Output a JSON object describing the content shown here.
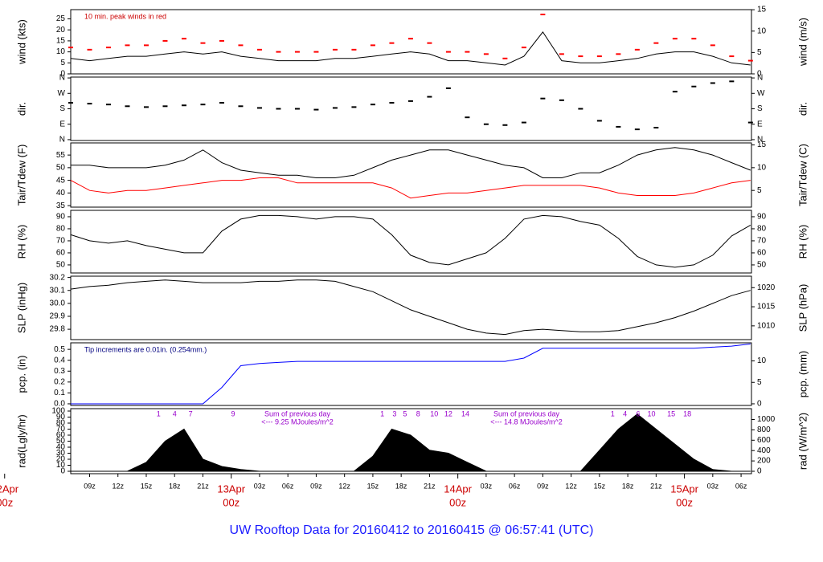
{
  "title": "UW Rooftop Data for 20160412  to  20160415 @ 06:57:41  (UTC)",
  "x_axis": {
    "xlim": [
      7,
      79.1
    ],
    "xticks": [
      {
        "value": 9,
        "label": "09z"
      },
      {
        "value": 12,
        "label": "12z"
      },
      {
        "value": 15,
        "label": "15z"
      },
      {
        "value": 18,
        "label": "18z"
      },
      {
        "value": 21,
        "label": "21z"
      },
      {
        "value": 27,
        "label": "03z"
      },
      {
        "value": 30,
        "label": "06z"
      },
      {
        "value": 33,
        "label": "09z"
      },
      {
        "value": 36,
        "label": "12z"
      },
      {
        "value": 39,
        "label": "15z"
      },
      {
        "value": 42,
        "label": "18z"
      },
      {
        "value": 45,
        "label": "21z"
      },
      {
        "value": 51,
        "label": "03z"
      },
      {
        "value": 54,
        "label": "06z"
      },
      {
        "value": 57,
        "label": "09z"
      },
      {
        "value": 60,
        "label": "12z"
      },
      {
        "value": 63,
        "label": "15z"
      },
      {
        "value": 66,
        "label": "18z"
      },
      {
        "value": 69,
        "label": "21z"
      },
      {
        "value": 75,
        "label": "03z"
      },
      {
        "value": 78,
        "label": "06z"
      }
    ],
    "day_labels": [
      {
        "value": 0,
        "lines": [
          "12Apr",
          "00z"
        ]
      },
      {
        "value": 24,
        "lines": [
          "13Apr",
          "00z"
        ]
      },
      {
        "value": 48,
        "lines": [
          "14Apr",
          "00z"
        ]
      },
      {
        "value": 72,
        "lines": [
          "15Apr",
          "00z"
        ]
      }
    ]
  },
  "chart_data": [
    {
      "type": "line",
      "ylabel": "wind (kts)",
      "y2label": "wind (m/s)",
      "annotation": "10 min. peak winds in red",
      "ylim": [
        0,
        29.2
      ],
      "yticks": [
        0,
        5,
        10,
        15,
        20,
        25
      ],
      "y2lim": [
        0,
        15.02
      ],
      "y2ticks": [
        0,
        5,
        10,
        15
      ],
      "x": [
        7,
        9,
        11,
        13,
        15,
        17,
        19,
        21,
        23,
        25,
        27,
        29,
        31,
        33,
        35,
        37,
        39,
        41,
        43,
        45,
        47,
        49,
        51,
        53,
        55,
        57,
        59,
        61,
        63,
        65,
        67,
        69,
        71,
        73,
        75,
        77,
        79
      ],
      "series": [
        {
          "color": "#000000",
          "values": [
            7,
            6,
            7,
            8,
            8,
            9,
            10,
            9,
            10,
            8,
            7,
            6,
            6,
            6,
            7,
            7,
            8,
            9,
            10,
            9,
            6,
            6,
            5,
            4,
            8,
            19,
            6,
            5,
            5,
            6,
            7,
            9,
            10,
            10,
            8,
            5,
            4
          ]
        },
        {
          "color": "#ff0000",
          "marker": "dash",
          "values": [
            12,
            11,
            12,
            13,
            13,
            15,
            16,
            14,
            15,
            13,
            11,
            10,
            10,
            10,
            11,
            11,
            13,
            14,
            16,
            14,
            10,
            10,
            9,
            7,
            12,
            27,
            9,
            8,
            8,
            9,
            11,
            14,
            16,
            16,
            13,
            8,
            6
          ]
        }
      ]
    },
    {
      "type": "scatter",
      "ylabel": "dir.",
      "y2label": "dir.",
      "ylim": [
        -5,
        365
      ],
      "yticks": [
        {
          "value": 0,
          "label": "N"
        },
        {
          "value": 90,
          "label": "E"
        },
        {
          "value": 180,
          "label": "S"
        },
        {
          "value": 270,
          "label": "W"
        },
        {
          "value": 360,
          "label": "N"
        }
      ],
      "y2lim": [
        -5,
        365
      ],
      "y2ticks": [
        {
          "value": 0,
          "label": "N"
        },
        {
          "value": 90,
          "label": "E"
        },
        {
          "value": 180,
          "label": "S"
        },
        {
          "value": 270,
          "label": "W"
        },
        {
          "value": 360,
          "label": "N"
        }
      ],
      "x": [
        7,
        9,
        11,
        13,
        15,
        17,
        19,
        21,
        23,
        25,
        27,
        29,
        31,
        33,
        35,
        37,
        39,
        41,
        43,
        45,
        47,
        49,
        51,
        53,
        55,
        57,
        59,
        61,
        63,
        65,
        67,
        69,
        71,
        73,
        75,
        77,
        79
      ],
      "series": [
        {
          "color": "#000000",
          "values": [
            215,
            210,
            205,
            195,
            190,
            195,
            200,
            205,
            215,
            195,
            185,
            180,
            180,
            175,
            185,
            190,
            205,
            215,
            225,
            250,
            300,
            130,
            90,
            85,
            100,
            240,
            230,
            180,
            110,
            75,
            60,
            70,
            280,
            310,
            330,
            340,
            100
          ]
        }
      ]
    },
    {
      "type": "line",
      "ylabel": "Tair/Tdew (F)",
      "y2label": "Tair/Tdew (C)",
      "ylim": [
        34.4,
        59.8
      ],
      "yticks": [
        35,
        40,
        45,
        50,
        55
      ],
      "y2lim": [
        1.33,
        15.44
      ],
      "y2ticks": [
        5,
        10,
        15
      ],
      "x": [
        7,
        9,
        11,
        13,
        15,
        17,
        19,
        21,
        23,
        25,
        27,
        29,
        31,
        33,
        35,
        37,
        39,
        41,
        43,
        45,
        47,
        49,
        51,
        53,
        55,
        57,
        59,
        61,
        63,
        65,
        67,
        69,
        71,
        73,
        75,
        77,
        79
      ],
      "series": [
        {
          "color": "#000000",
          "values": [
            51,
            51,
            50,
            50,
            50,
            51,
            53,
            57,
            52,
            49,
            48,
            47,
            47,
            46,
            46,
            47,
            50,
            53,
            55,
            57,
            57,
            55,
            53,
            51,
            50,
            46,
            46,
            48,
            48,
            51,
            55,
            57,
            58,
            57,
            55,
            52,
            49
          ]
        },
        {
          "color": "#ff0000",
          "values": [
            45,
            41,
            40,
            41,
            41,
            42,
            43,
            44,
            45,
            45,
            46,
            46,
            44,
            44,
            44,
            44,
            44,
            42,
            38,
            39,
            40,
            40,
            41,
            42,
            43,
            43,
            43,
            43,
            42,
            40,
            39,
            39,
            39,
            40,
            42,
            44,
            45
          ]
        }
      ]
    },
    {
      "type": "line",
      "ylabel": "RH (%)",
      "y2label": "RH (%)",
      "ylim": [
        43.3,
        95.3
      ],
      "yticks": [
        50,
        60,
        70,
        80,
        90
      ],
      "y2lim": [
        43.3,
        95.3
      ],
      "y2ticks": [
        50,
        60,
        70,
        80,
        90
      ],
      "x": [
        7,
        9,
        11,
        13,
        15,
        17,
        19,
        21,
        23,
        25,
        27,
        29,
        31,
        33,
        35,
        37,
        39,
        41,
        43,
        45,
        47,
        49,
        51,
        53,
        55,
        57,
        59,
        61,
        63,
        65,
        67,
        69,
        71,
        73,
        75,
        77,
        79
      ],
      "series": [
        {
          "color": "#000000",
          "values": [
            75,
            70,
            68,
            70,
            66,
            63,
            60,
            60,
            78,
            88,
            91,
            91,
            90,
            88,
            90,
            90,
            88,
            75,
            58,
            52,
            50,
            55,
            60,
            72,
            88,
            91,
            90,
            86,
            83,
            72,
            57,
            50,
            48,
            50,
            58,
            74,
            83
          ]
        }
      ]
    },
    {
      "type": "line",
      "ylabel": "SLP (inHg)",
      "y2label": "SLP (hPa)",
      "ylim": [
        29.72,
        30.21
      ],
      "yticks": [
        29.8,
        29.9,
        {
          "value": 30,
          "label": "30.0"
        },
        30.1,
        30.2
      ],
      "y2lim": [
        1006.4,
        1023.0
      ],
      "y2ticks": [
        1010,
        1015,
        1020
      ],
      "x": [
        7,
        9,
        11,
        13,
        15,
        17,
        19,
        21,
        23,
        25,
        27,
        29,
        31,
        33,
        35,
        37,
        39,
        41,
        43,
        45,
        47,
        49,
        51,
        53,
        55,
        57,
        59,
        61,
        63,
        65,
        67,
        69,
        71,
        73,
        75,
        77,
        79
      ],
      "series": [
        {
          "color": "#000000",
          "values": [
            30.11,
            30.13,
            30.14,
            30.16,
            30.17,
            30.18,
            30.17,
            30.16,
            30.16,
            30.16,
            30.17,
            30.17,
            30.18,
            30.18,
            30.17,
            30.13,
            30.09,
            30.02,
            29.95,
            29.9,
            29.85,
            29.8,
            29.77,
            29.76,
            29.79,
            29.8,
            29.79,
            29.78,
            29.78,
            29.79,
            29.82,
            29.85,
            29.89,
            29.94,
            30.0,
            30.06,
            30.1
          ]
        }
      ]
    },
    {
      "type": "line",
      "ylabel": "pcp. (in)",
      "y2label": "pcp. (mm)",
      "annotation": "Tip increments are 0.01in. (0.254mm.)",
      "ylim": [
        -0.015,
        0.56
      ],
      "yticks": [
        {
          "value": 0,
          "label": "0.0"
        },
        0.1,
        0.2,
        0.3,
        0.4,
        0.5
      ],
      "y2lim": [
        -0.38,
        14.22
      ],
      "y2ticks": [
        0,
        5,
        10
      ],
      "x": [
        7,
        9,
        11,
        13,
        15,
        17,
        19,
        21,
        23,
        25,
        27,
        29,
        31,
        33,
        35,
        37,
        39,
        41,
        43,
        45,
        47,
        49,
        51,
        53,
        55,
        57,
        59,
        61,
        63,
        65,
        67,
        69,
        71,
        73,
        75,
        77,
        79
      ],
      "series": [
        {
          "color": "#0000ff",
          "values": [
            0,
            0,
            0,
            0,
            0,
            0,
            0,
            0,
            0.15,
            0.35,
            0.37,
            0.38,
            0.39,
            0.39,
            0.39,
            0.39,
            0.39,
            0.39,
            0.39,
            0.39,
            0.39,
            0.39,
            0.39,
            0.39,
            0.42,
            0.51,
            0.51,
            0.51,
            0.51,
            0.51,
            0.51,
            0.51,
            0.51,
            0.51,
            0.52,
            0.53,
            0.55
          ]
        }
      ]
    },
    {
      "type": "area",
      "ylabel": "rad(Lgly/hr)",
      "y2label": "rad (W/m^2)",
      "ylim": [
        -4,
        104
      ],
      "yticks": [
        0,
        10,
        20,
        30,
        40,
        50,
        60,
        70,
        80,
        90,
        100
      ],
      "y2lim": [
        -46.5,
        1209.5
      ],
      "y2ticks": [
        0,
        200,
        400,
        600,
        800,
        1000
      ],
      "notes": [
        {
          "lines": [
            "Sum of previous day",
            "<--- 9.25 MJoules/m^2"
          ]
        },
        {
          "lines": [
            "Sum of previous day",
            "<--- 14.8 MJoules/m^2"
          ]
        }
      ],
      "markers": [
        {
          "x": 16.3,
          "label": "1"
        },
        {
          "x": 18,
          "label": "4"
        },
        {
          "x": 19.7,
          "label": "7"
        },
        {
          "x": 24.2,
          "label": "9"
        },
        {
          "x": 40,
          "label": "1"
        },
        {
          "x": 41.3,
          "label": "3"
        },
        {
          "x": 42.4,
          "label": "5"
        },
        {
          "x": 43.8,
          "label": "8"
        },
        {
          "x": 45.5,
          "label": "10"
        },
        {
          "x": 47,
          "label": "12"
        },
        {
          "x": 48.8,
          "label": "14"
        },
        {
          "x": 64.4,
          "label": "1"
        },
        {
          "x": 65.7,
          "label": "4"
        },
        {
          "x": 67.1,
          "label": "6"
        },
        {
          "x": 68.5,
          "label": "10"
        },
        {
          "x": 70.6,
          "label": "15"
        },
        {
          "x": 72.3,
          "label": "18"
        }
      ],
      "x": [
        7,
        9,
        11,
        13,
        15,
        17,
        19,
        21,
        23,
        25,
        27,
        29,
        31,
        33,
        35,
        37,
        39,
        41,
        43,
        45,
        47,
        49,
        51,
        53,
        55,
        57,
        59,
        61,
        63,
        65,
        67,
        69,
        71,
        73,
        75,
        77,
        79
      ],
      "series": [
        {
          "color": "#000000",
          "values": [
            0,
            0,
            0,
            0,
            15,
            50,
            70,
            20,
            8,
            3,
            0,
            0,
            0,
            0,
            0,
            0,
            25,
            70,
            60,
            35,
            30,
            15,
            0,
            0,
            0,
            0,
            0,
            0,
            35,
            70,
            95,
            70,
            45,
            20,
            3,
            0,
            0
          ]
        }
      ]
    }
  ]
}
